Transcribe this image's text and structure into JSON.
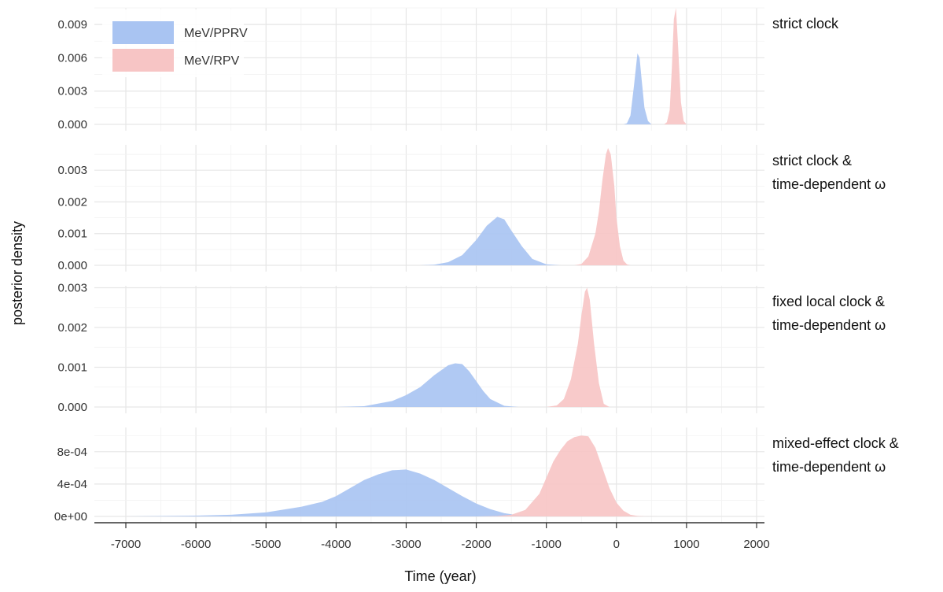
{
  "chart_data": {
    "type": "area",
    "xlabel": "Time (year)",
    "ylabel": "posterior density",
    "xlim": [
      -7000,
      2000
    ],
    "x_ticks": [
      -7000,
      -6000,
      -5000,
      -4000,
      -3000,
      -2000,
      -1000,
      0,
      1000,
      2000
    ],
    "x_tick_labels": [
      "-7000",
      "-6000",
      "-5000",
      "-4000",
      "-3000",
      "-2000",
      "-1000",
      "0",
      "1000",
      "2000"
    ],
    "legend": {
      "placement": "top-left",
      "entries": [
        {
          "label": "MeV/PPRV",
          "color": "#a9c4f2"
        },
        {
          "label": "MeV/RPV",
          "color": "#f7c5c5"
        }
      ]
    },
    "grid": true,
    "panels": [
      {
        "label": [
          "strict clock"
        ],
        "ylim": [
          0,
          0.0105
        ],
        "y_ticks": [
          0,
          0.003,
          0.006,
          0.009
        ],
        "y_tick_labels": [
          "0.000",
          "0.003",
          "0.006",
          "0.009"
        ],
        "series": [
          {
            "name": "MeV/PPRV",
            "x": [
              100,
              150,
              200,
              250,
              300,
              330,
              360,
              400,
              450,
              500
            ],
            "y": [
              0,
              0.0001,
              0.0008,
              0.0035,
              0.0064,
              0.006,
              0.004,
              0.0015,
              0.0003,
              0
            ]
          },
          {
            "name": "MeV/RPV",
            "x": [
              680,
              720,
              760,
              790,
              820,
              850,
              880,
              920,
              960,
              1000
            ],
            "y": [
              0,
              0.0002,
              0.0013,
              0.005,
              0.0095,
              0.0105,
              0.007,
              0.002,
              0.0003,
              0
            ]
          }
        ]
      },
      {
        "label": [
          "strict clock &",
          "time-dependent ω"
        ],
        "ylim": [
          0,
          0.0038
        ],
        "y_ticks": [
          0,
          0.001,
          0.002,
          0.003
        ],
        "y_tick_labels": [
          "0.000",
          "0.001",
          "0.002",
          "0.003"
        ],
        "series": [
          {
            "name": "MeV/PPRV",
            "x": [
              -2800,
              -2600,
              -2400,
              -2200,
              -2000,
              -1850,
              -1700,
              -1600,
              -1500,
              -1350,
              -1200,
              -1000,
              -800
            ],
            "y": [
              0,
              2e-05,
              0.0001,
              0.00032,
              0.0008,
              0.00125,
              0.00153,
              0.00145,
              0.0011,
              0.0006,
              0.0002,
              3e-05,
              0
            ]
          },
          {
            "name": "MeV/RPV",
            "x": [
              -600,
              -500,
              -400,
              -300,
              -250,
              -200,
              -150,
              -120,
              -80,
              -30,
              0,
              50,
              100,
              150,
              200
            ],
            "y": [
              0,
              4e-05,
              0.00028,
              0.001,
              0.0017,
              0.0027,
              0.0035,
              0.0037,
              0.0035,
              0.0025,
              0.0015,
              0.0006,
              0.00015,
              3e-05,
              0
            ]
          }
        ]
      },
      {
        "label": [
          "fixed local clock &",
          "time-dependent ω"
        ],
        "ylim": [
          0,
          0.00305
        ],
        "y_ticks": [
          0,
          0.001,
          0.002,
          0.003
        ],
        "y_tick_labels": [
          "0.000",
          "0.001",
          "0.002",
          "0.003"
        ],
        "series": [
          {
            "name": "MeV/PPRV",
            "x": [
              -4000,
              -3600,
              -3200,
              -3000,
              -2800,
              -2600,
              -2400,
              -2300,
              -2200,
              -2100,
              -2000,
              -1900,
              -1800,
              -1600,
              -1400
            ],
            "y": [
              0,
              2e-05,
              0.00015,
              0.0003,
              0.0005,
              0.0008,
              0.00105,
              0.0011,
              0.00108,
              0.0009,
              0.00065,
              0.0004,
              0.0002,
              3e-05,
              0
            ]
          },
          {
            "name": "MeV/RPV",
            "x": [
              -1000,
              -850,
              -750,
              -650,
              -550,
              -500,
              -450,
              -420,
              -380,
              -320,
              -250,
              -180,
              -100
            ],
            "y": [
              0,
              4e-05,
              0.0002,
              0.0007,
              0.0016,
              0.0023,
              0.0029,
              0.003,
              0.0027,
              0.0016,
              0.0006,
              8e-05,
              0
            ]
          }
        ]
      },
      {
        "label": [
          "mixed-effect clock &",
          "time-dependent ω"
        ],
        "ylim": [
          0,
          0.0011
        ],
        "y_ticks": [
          0,
          0.0004,
          0.0008
        ],
        "y_tick_labels": [
          "0e+00",
          "4e-04",
          "8e-04"
        ],
        "series": [
          {
            "name": "MeV/PPRV",
            "x": [
              -7000,
              -6000,
              -5500,
              -5000,
              -4500,
              -4200,
              -4000,
              -3800,
              -3600,
              -3400,
              -3200,
              -3000,
              -2800,
              -2600,
              -2400,
              -2200,
              -2000,
              -1800,
              -1600,
              -1400,
              -1200,
              -1000
            ],
            "y": [
              0,
              1e-05,
              2e-05,
              5e-05,
              0.00012,
              0.00018,
              0.00025,
              0.00035,
              0.00045,
              0.00052,
              0.00057,
              0.00058,
              0.00053,
              0.00045,
              0.00035,
              0.00025,
              0.00016,
              9e-05,
              4e-05,
              1.5e-05,
              4e-06,
              0
            ]
          },
          {
            "name": "MeV/RPV",
            "x": [
              -2000,
              -1700,
              -1500,
              -1300,
              -1100,
              -1000,
              -900,
              -800,
              -700,
              -600,
              -500,
              -400,
              -300,
              -200,
              -100,
              0,
              100,
              200,
              300,
              400,
              600
            ],
            "y": [
              0,
              5e-06,
              2e-05,
              8e-05,
              0.00028,
              0.00048,
              0.00068,
              0.00082,
              0.00093,
              0.00098,
              0.001,
              0.00099,
              0.00085,
              0.0006,
              0.00035,
              0.00017,
              7e-05,
              2e-05,
              6e-06,
              1e-06,
              0
            ]
          }
        ]
      }
    ]
  }
}
